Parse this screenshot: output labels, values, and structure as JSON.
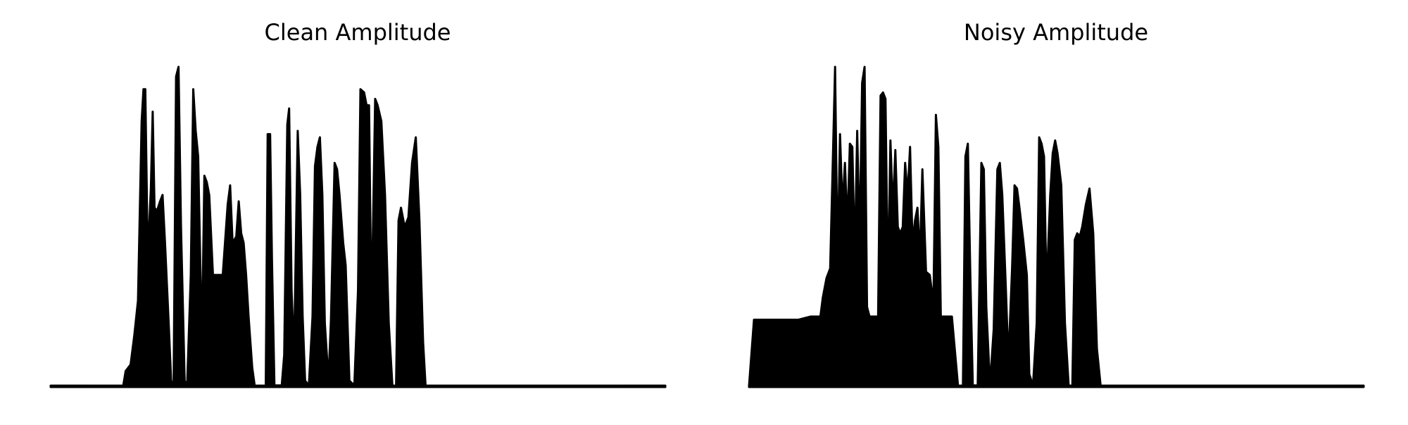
{
  "colors": {
    "background": "#ffffff",
    "waveform": "#000000"
  },
  "chart_data": [
    {
      "type": "area",
      "title": "Clean Amplitude",
      "xlabel": "",
      "ylabel": "",
      "axes_visible": false,
      "grid": false,
      "legend": "none",
      "xlim": [
        0,
        1000
      ],
      "ylim": [
        0,
        1.0
      ],
      "envelope": [
        [
          0,
          0.004
        ],
        [
          118,
          0.004
        ],
        [
          122,
          0.05
        ],
        [
          130,
          0.07
        ],
        [
          136,
          0.16
        ],
        [
          142,
          0.27
        ],
        [
          148,
          0.83
        ],
        [
          151,
          0.93
        ],
        [
          154,
          0.93
        ],
        [
          158,
          0.4
        ],
        [
          163,
          0.62
        ],
        [
          166,
          0.86
        ],
        [
          169,
          0.56
        ],
        [
          173,
          0.55
        ],
        [
          178,
          0.58
        ],
        [
          182,
          0.6
        ],
        [
          186,
          0.45
        ],
        [
          192,
          0.2
        ],
        [
          196,
          0.02
        ],
        [
          200,
          0.004
        ],
        [
          204,
          0.97
        ],
        [
          208,
          1.0
        ],
        [
          212,
          0.5
        ],
        [
          218,
          0.02
        ],
        [
          222,
          0.004
        ],
        [
          228,
          0.35
        ],
        [
          232,
          0.93
        ],
        [
          236,
          0.8
        ],
        [
          240,
          0.72
        ],
        [
          246,
          0.13
        ],
        [
          250,
          0.66
        ],
        [
          254,
          0.64
        ],
        [
          258,
          0.6
        ],
        [
          264,
          0.35
        ],
        [
          272,
          0.35
        ],
        [
          280,
          0.35
        ],
        [
          288,
          0.57
        ],
        [
          292,
          0.63
        ],
        [
          296,
          0.45
        ],
        [
          302,
          0.47
        ],
        [
          306,
          0.58
        ],
        [
          310,
          0.48
        ],
        [
          314,
          0.45
        ],
        [
          318,
          0.35
        ],
        [
          322,
          0.22
        ],
        [
          328,
          0.06
        ],
        [
          332,
          0.004
        ],
        [
          350,
          0.004
        ],
        [
          353,
          0.79
        ],
        [
          357,
          0.79
        ],
        [
          360,
          0.4
        ],
        [
          364,
          0.005
        ],
        [
          376,
          0.005
        ],
        [
          380,
          0.1
        ],
        [
          385,
          0.82
        ],
        [
          388,
          0.87
        ],
        [
          392,
          0.3
        ],
        [
          396,
          0.1
        ],
        [
          402,
          0.8
        ],
        [
          406,
          0.6
        ],
        [
          410,
          0.22
        ],
        [
          414,
          0.02
        ],
        [
          420,
          0.005
        ],
        [
          426,
          0.22
        ],
        [
          430,
          0.69
        ],
        [
          434,
          0.75
        ],
        [
          438,
          0.78
        ],
        [
          442,
          0.6
        ],
        [
          446,
          0.2
        ],
        [
          452,
          0.02
        ],
        [
          456,
          0.21
        ],
        [
          462,
          0.7
        ],
        [
          466,
          0.68
        ],
        [
          470,
          0.6
        ],
        [
          476,
          0.45
        ],
        [
          480,
          0.38
        ],
        [
          486,
          0.02
        ],
        [
          494,
          0.005
        ],
        [
          500,
          0.3
        ],
        [
          504,
          0.93
        ],
        [
          510,
          0.92
        ],
        [
          514,
          0.88
        ],
        [
          518,
          0.88
        ],
        [
          522,
          0.22
        ],
        [
          528,
          0.9
        ],
        [
          532,
          0.88
        ],
        [
          538,
          0.83
        ],
        [
          544,
          0.6
        ],
        [
          550,
          0.2
        ],
        [
          556,
          0.004
        ],
        [
          562,
          0.004
        ],
        [
          566,
          0.52
        ],
        [
          570,
          0.56
        ],
        [
          576,
          0.5
        ],
        [
          582,
          0.53
        ],
        [
          588,
          0.7
        ],
        [
          594,
          0.78
        ],
        [
          600,
          0.52
        ],
        [
          606,
          0.14
        ],
        [
          610,
          0.004
        ],
        [
          1000,
          0.004
        ]
      ]
    },
    {
      "type": "area",
      "title": "Noisy Amplitude",
      "xlabel": "",
      "ylabel": "",
      "axes_visible": false,
      "grid": false,
      "legend": "none",
      "xlim": [
        0,
        1000
      ],
      "ylim": [
        0,
        1.0
      ],
      "envelope": [
        [
          0,
          0.004
        ],
        [
          8,
          0.21
        ],
        [
          40,
          0.21
        ],
        [
          80,
          0.21
        ],
        [
          100,
          0.22
        ],
        [
          116,
          0.22
        ],
        [
          120,
          0.28
        ],
        [
          126,
          0.34
        ],
        [
          132,
          0.37
        ],
        [
          136,
          0.68
        ],
        [
          140,
          1.0
        ],
        [
          144,
          0.38
        ],
        [
          148,
          0.79
        ],
        [
          152,
          0.56
        ],
        [
          156,
          0.7
        ],
        [
          160,
          0.5
        ],
        [
          164,
          0.76
        ],
        [
          168,
          0.75
        ],
        [
          172,
          0.4
        ],
        [
          176,
          0.8
        ],
        [
          180,
          0.45
        ],
        [
          184,
          0.95
        ],
        [
          188,
          1.0
        ],
        [
          192,
          0.25
        ],
        [
          196,
          0.22
        ],
        [
          210,
          0.22
        ],
        [
          214,
          0.91
        ],
        [
          218,
          0.92
        ],
        [
          222,
          0.9
        ],
        [
          226,
          0.3
        ],
        [
          230,
          0.77
        ],
        [
          234,
          0.55
        ],
        [
          238,
          0.74
        ],
        [
          242,
          0.5
        ],
        [
          246,
          0.48
        ],
        [
          250,
          0.5
        ],
        [
          254,
          0.7
        ],
        [
          258,
          0.6
        ],
        [
          262,
          0.75
        ],
        [
          266,
          0.45
        ],
        [
          270,
          0.52
        ],
        [
          274,
          0.56
        ],
        [
          278,
          0.4
        ],
        [
          282,
          0.68
        ],
        [
          288,
          0.36
        ],
        [
          294,
          0.35
        ],
        [
          300,
          0.26
        ],
        [
          304,
          0.85
        ],
        [
          308,
          0.75
        ],
        [
          312,
          0.22
        ],
        [
          330,
          0.22
        ],
        [
          340,
          0.004
        ],
        [
          348,
          0.004
        ],
        [
          352,
          0.72
        ],
        [
          356,
          0.76
        ],
        [
          360,
          0.35
        ],
        [
          364,
          0.005
        ],
        [
          372,
          0.005
        ],
        [
          378,
          0.7
        ],
        [
          382,
          0.68
        ],
        [
          386,
          0.25
        ],
        [
          392,
          0.005
        ],
        [
          398,
          0.18
        ],
        [
          404,
          0.68
        ],
        [
          408,
          0.7
        ],
        [
          412,
          0.6
        ],
        [
          418,
          0.3
        ],
        [
          422,
          0.08
        ],
        [
          428,
          0.37
        ],
        [
          432,
          0.63
        ],
        [
          436,
          0.62
        ],
        [
          440,
          0.56
        ],
        [
          446,
          0.46
        ],
        [
          452,
          0.35
        ],
        [
          456,
          0.04
        ],
        [
          462,
          0.004
        ],
        [
          468,
          0.2
        ],
        [
          472,
          0.78
        ],
        [
          476,
          0.76
        ],
        [
          480,
          0.72
        ],
        [
          484,
          0.3
        ],
        [
          490,
          0.6
        ],
        [
          494,
          0.73
        ],
        [
          498,
          0.77
        ],
        [
          502,
          0.73
        ],
        [
          508,
          0.63
        ],
        [
          514,
          0.2
        ],
        [
          520,
          0.004
        ],
        [
          526,
          0.004
        ],
        [
          530,
          0.46
        ],
        [
          534,
          0.48
        ],
        [
          538,
          0.47
        ],
        [
          542,
          0.5
        ],
        [
          548,
          0.57
        ],
        [
          554,
          0.62
        ],
        [
          560,
          0.48
        ],
        [
          566,
          0.12
        ],
        [
          572,
          0.004
        ],
        [
          1000,
          0.004
        ]
      ]
    }
  ]
}
